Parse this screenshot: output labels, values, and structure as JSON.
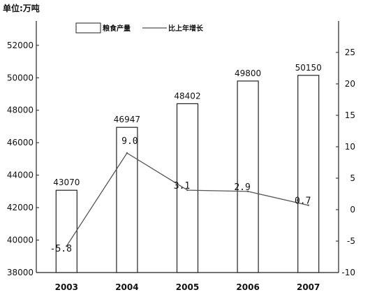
{
  "chart_data": {
    "type": "bar",
    "unit_label": "单位:万吨",
    "categories": [
      "2003",
      "2004",
      "2005",
      "2006",
      "2007"
    ],
    "series": [
      {
        "name": "粮食产量",
        "type": "bar",
        "axis": "left",
        "values": [
          43070,
          46947,
          48402,
          49800,
          50150
        ],
        "labels": [
          "43070",
          "46947",
          "48402",
          "49800",
          "50150"
        ]
      },
      {
        "name": "比上年增长",
        "type": "line",
        "axis": "right",
        "values": [
          -5.8,
          9.0,
          3.1,
          2.9,
          0.7
        ],
        "labels": [
          "-5.8",
          "9.0",
          "3.1",
          "2.9",
          "0.7"
        ]
      }
    ],
    "y_left": {
      "range": [
        38000,
        53500
      ],
      "ticks": [
        "38000",
        "40000",
        "42000",
        "44000",
        "46000",
        "48000",
        "50000",
        "52000"
      ]
    },
    "y_right": {
      "range": [
        -10,
        30
      ],
      "ticks": [
        "-10",
        "-5",
        "0",
        "5",
        "10",
        "15",
        "20",
        "25"
      ]
    },
    "grid": false,
    "legend_position": "top"
  }
}
